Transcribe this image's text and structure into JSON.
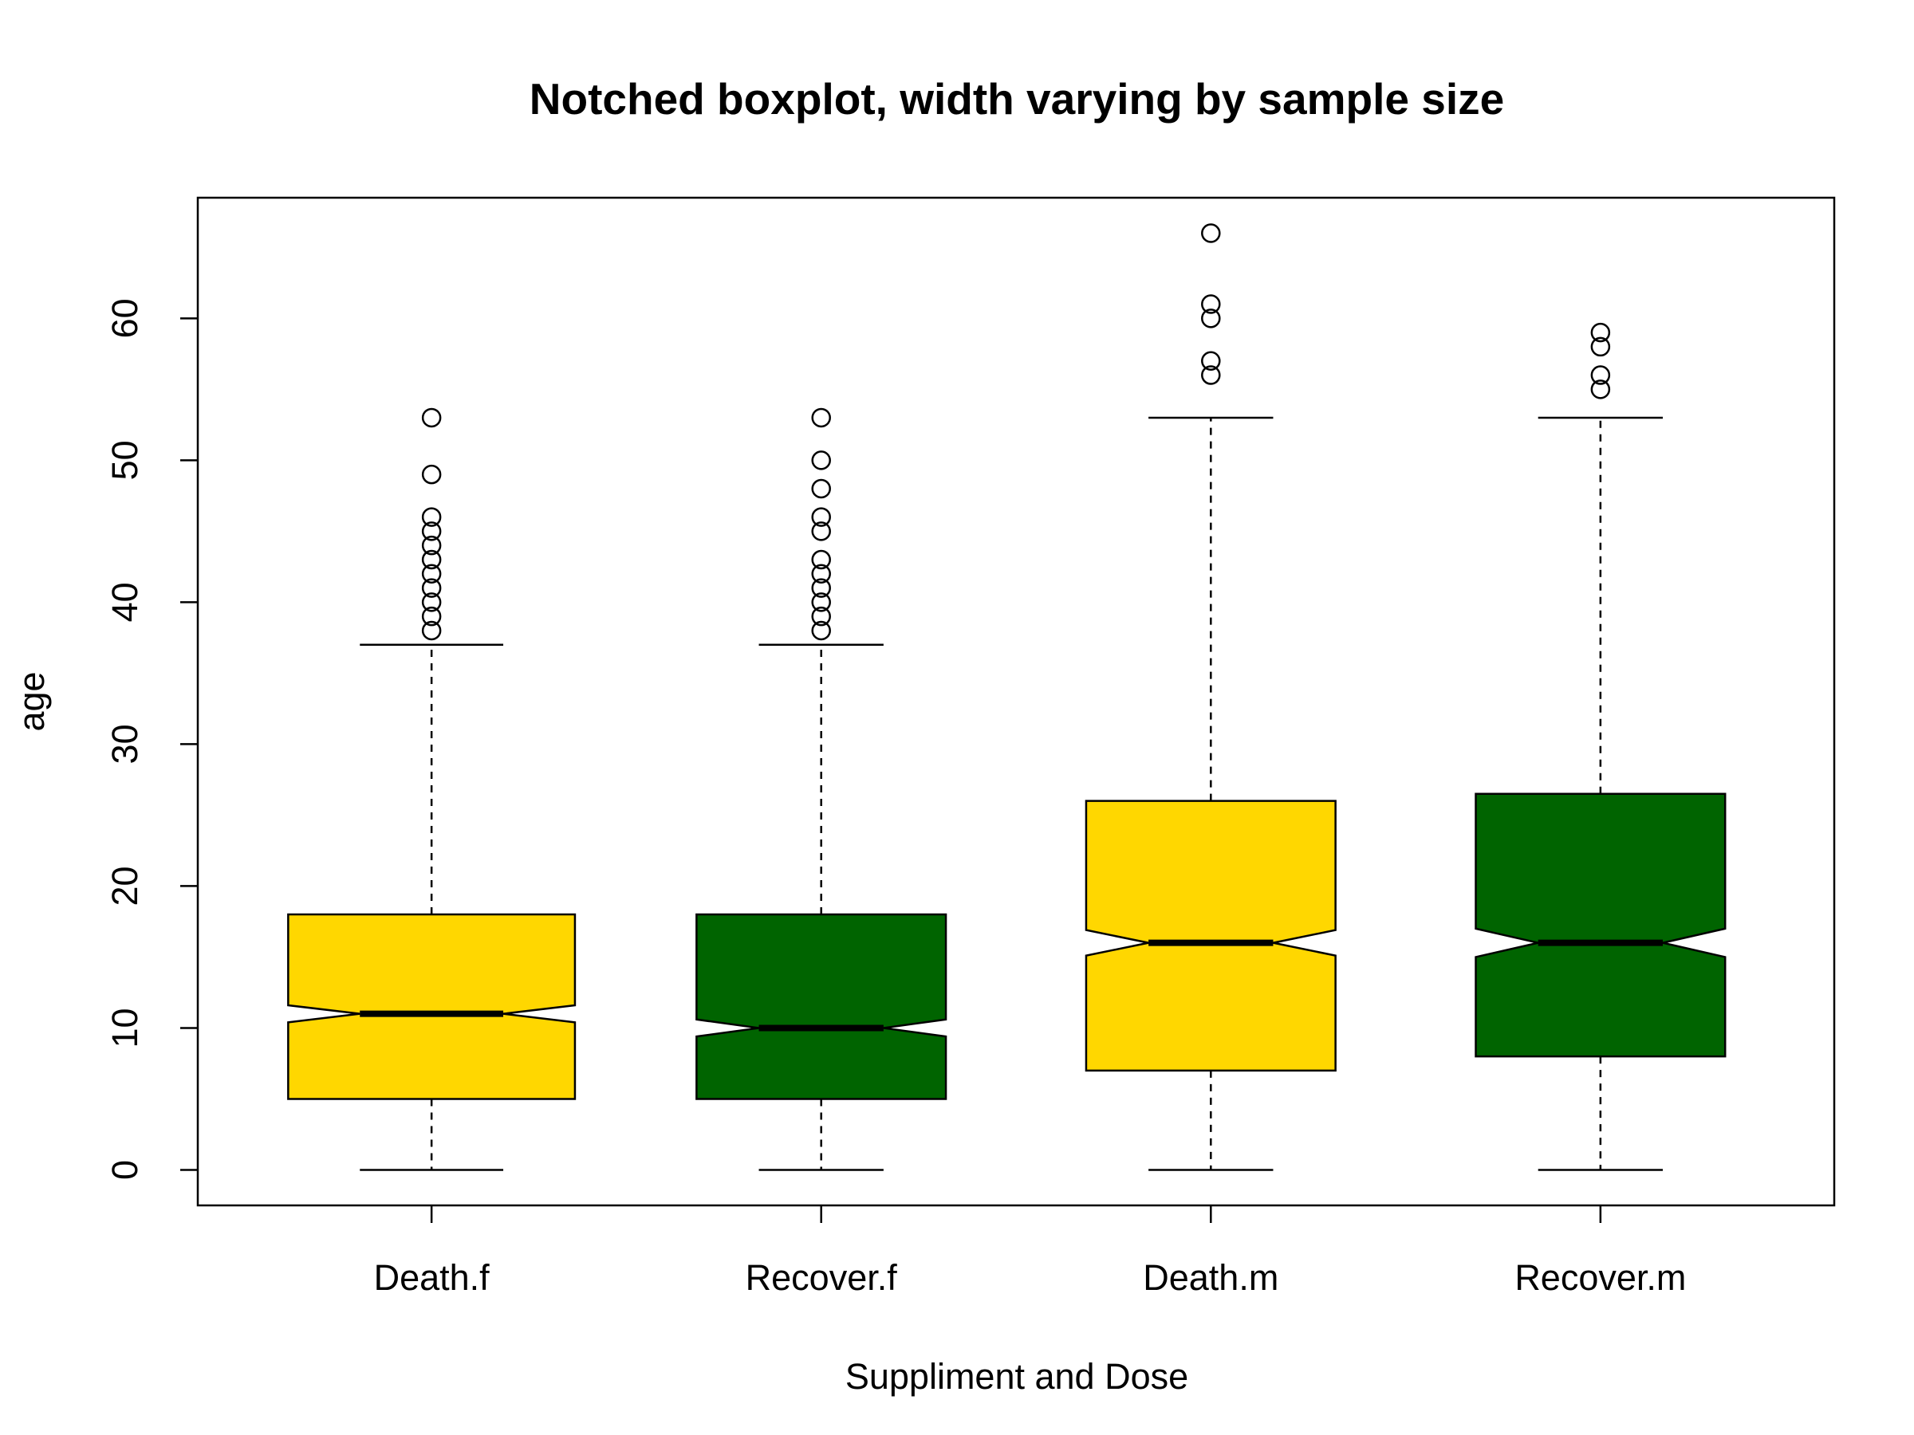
{
  "chart_data": {
    "type": "boxplot",
    "notched": true,
    "title": "Notched boxplot, width varying by sample size",
    "xlabel": "Suppliment and Dose",
    "ylabel": "age",
    "ylim": [
      -2.5,
      68.5
    ],
    "yticks": [
      0,
      10,
      20,
      30,
      40,
      50,
      60
    ],
    "categories": [
      "Death.f",
      "Recover.f",
      "Death.m",
      "Recover.m"
    ],
    "colors": [
      "#FFD700",
      "#006400",
      "#FFD700",
      "#006400"
    ],
    "boxes": [
      {
        "name": "Death.f",
        "whisker_low": 0,
        "q1": 5,
        "median": 11,
        "q3": 18,
        "whisker_high": 37,
        "notch": [
          10.4,
          11.6
        ],
        "relative_width": 0.92,
        "outliers": [
          38,
          39,
          40,
          41,
          42,
          43,
          44,
          45,
          46,
          49,
          53
        ]
      },
      {
        "name": "Recover.f",
        "whisker_low": 0,
        "q1": 5,
        "median": 10,
        "q3": 18,
        "whisker_high": 37,
        "notch": [
          9.4,
          10.6
        ],
        "relative_width": 0.8,
        "outliers": [
          38,
          39,
          40,
          41,
          42,
          43,
          45,
          46,
          48,
          50,
          53
        ]
      },
      {
        "name": "Death.m",
        "whisker_low": 0,
        "q1": 7,
        "median": 16,
        "q3": 26,
        "whisker_high": 53,
        "notch": [
          15.1,
          16.9
        ],
        "relative_width": 0.8,
        "outliers": [
          56,
          57,
          60,
          61,
          66
        ]
      },
      {
        "name": "Recover.m",
        "whisker_low": 0,
        "q1": 8,
        "median": 16,
        "q3": 26.5,
        "whisker_high": 53,
        "notch": [
          15.0,
          17.0
        ],
        "relative_width": 0.8,
        "outliers": [
          55,
          56,
          58,
          59
        ]
      }
    ]
  }
}
